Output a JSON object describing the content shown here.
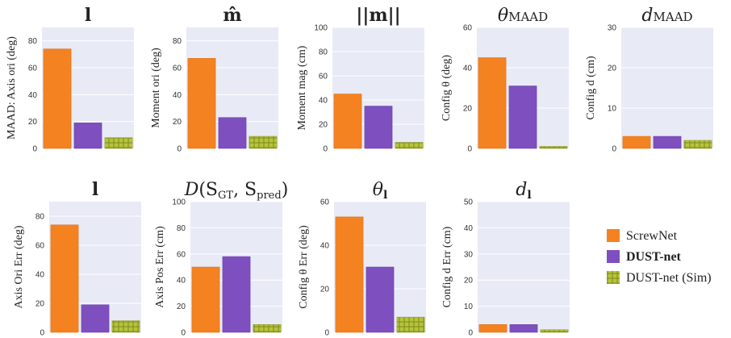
{
  "legend": {
    "items": [
      {
        "label": "ScrewNet",
        "color": "#f58220",
        "bold": false,
        "hatch": false
      },
      {
        "label": "DUST-net",
        "color": "#7e4fbf",
        "bold": true,
        "hatch": false
      },
      {
        "label": "DUST-net (Sim)",
        "color": "#b5c43a",
        "bold": false,
        "hatch": true
      }
    ]
  },
  "chart_data": [
    {
      "type": "bar",
      "title": "l",
      "ylabel": "MAAD: Axis ori (deg)",
      "ylim": [
        0,
        90
      ],
      "yticks": [
        0,
        20,
        40,
        60,
        80
      ],
      "series": [
        {
          "name": "ScrewNet",
          "value": 74
        },
        {
          "name": "DUST-net",
          "value": 19
        },
        {
          "name": "DUST-net (Sim)",
          "value": 8
        }
      ]
    },
    {
      "type": "bar",
      "title": "m̂",
      "ylabel": "Moment ori (deg)",
      "ylim": [
        0,
        90
      ],
      "yticks": [
        0,
        20,
        40,
        60,
        80
      ],
      "series": [
        {
          "name": "ScrewNet",
          "value": 67
        },
        {
          "name": "DUST-net",
          "value": 23
        },
        {
          "name": "DUST-net (Sim)",
          "value": 9
        }
      ]
    },
    {
      "type": "bar",
      "title": "||m||",
      "ylabel": "Moment mag (cm)",
      "ylim": [
        0,
        100
      ],
      "yticks": [
        0,
        20,
        40,
        60,
        80,
        100
      ],
      "series": [
        {
          "name": "ScrewNet",
          "value": 45
        },
        {
          "name": "DUST-net",
          "value": 35
        },
        {
          "name": "DUST-net (Sim)",
          "value": 5
        }
      ]
    },
    {
      "type": "bar",
      "title": "θMAAD",
      "ylabel": "Config θ (deg)",
      "ylim": [
        0,
        60
      ],
      "yticks": [
        0,
        20,
        40,
        60
      ],
      "series": [
        {
          "name": "ScrewNet",
          "value": 45
        },
        {
          "name": "DUST-net",
          "value": 31
        },
        {
          "name": "DUST-net (Sim)",
          "value": 1
        }
      ]
    },
    {
      "type": "bar",
      "title": "dMAAD",
      "ylabel": "Config d (cm)",
      "ylim": [
        0,
        30
      ],
      "yticks": [
        0,
        10,
        20,
        30
      ],
      "series": [
        {
          "name": "ScrewNet",
          "value": 3
        },
        {
          "name": "DUST-net",
          "value": 3
        },
        {
          "name": "DUST-net (Sim)",
          "value": 2
        }
      ]
    },
    {
      "type": "bar",
      "title": "l",
      "ylabel": "Axis Ori Err (deg)",
      "ylim": [
        0,
        90
      ],
      "yticks": [
        0,
        20,
        40,
        60,
        80
      ],
      "series": [
        {
          "name": "ScrewNet",
          "value": 74
        },
        {
          "name": "DUST-net",
          "value": 19
        },
        {
          "name": "DUST-net (Sim)",
          "value": 8
        }
      ]
    },
    {
      "type": "bar",
      "title": "D(SGT, Spred)",
      "ylabel": "Axis Pos Err (cm)",
      "ylim": [
        0,
        100
      ],
      "yticks": [
        0,
        20,
        40,
        60,
        80,
        100
      ],
      "series": [
        {
          "name": "ScrewNet",
          "value": 50
        },
        {
          "name": "DUST-net",
          "value": 58
        },
        {
          "name": "DUST-net (Sim)",
          "value": 6
        }
      ]
    },
    {
      "type": "bar",
      "title": "θl",
      "ylabel": "Config θ Err (deg)",
      "ylim": [
        0,
        60
      ],
      "yticks": [
        0,
        20,
        40,
        60
      ],
      "series": [
        {
          "name": "ScrewNet",
          "value": 53
        },
        {
          "name": "DUST-net",
          "value": 30
        },
        {
          "name": "DUST-net (Sim)",
          "value": 7
        }
      ]
    },
    {
      "type": "bar",
      "title": "dl",
      "ylabel": "Config d Err (cm)",
      "ylim": [
        0,
        50
      ],
      "yticks": [
        0,
        10,
        20,
        30,
        40,
        50
      ],
      "series": [
        {
          "name": "ScrewNet",
          "value": 3
        },
        {
          "name": "DUST-net",
          "value": 3
        },
        {
          "name": "DUST-net (Sim)",
          "value": 1
        }
      ]
    }
  ]
}
